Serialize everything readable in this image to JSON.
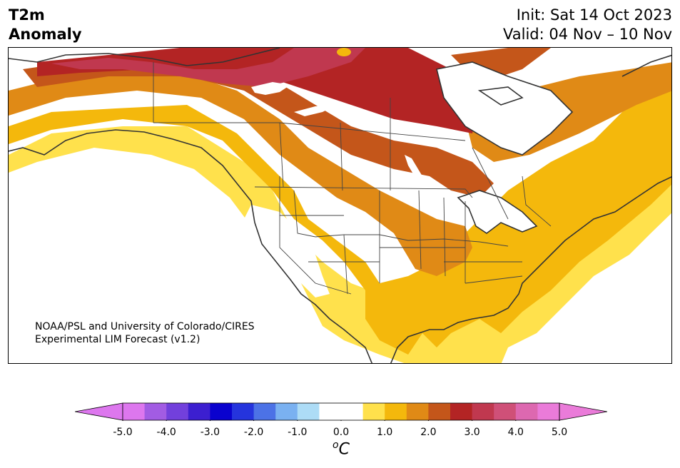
{
  "header": {
    "title_line1": "T2m",
    "title_line2": "Anomaly",
    "init": "Init: Sat 14 Oct 2023",
    "valid": "Valid: 04 Nov – 10 Nov"
  },
  "map": {
    "region": "North America",
    "projection": "conic",
    "credit_line1": "NOAA/PSL and University of Colorado/CIRES",
    "credit_line2": "Experimental LIM Forecast (v1.2)",
    "anomaly_levels": [
      {
        "range": "0.5 to 1.0",
        "color": "#ffe14c"
      },
      {
        "range": "1.0 to 1.5",
        "color": "#f4b80c"
      },
      {
        "range": "1.5 to 2.0",
        "color": "#e08a16"
      },
      {
        "range": "2.0 to 2.5",
        "color": "#c4561a"
      },
      {
        "range": "2.5 to 3.0",
        "color": "#b32424"
      },
      {
        "range": "3.0 to 3.5",
        "color": "#c0384f"
      }
    ]
  },
  "colorbar": {
    "unit_symbol": "C",
    "unit_superscript": "o",
    "extend": "both",
    "bins": [
      {
        "color": "#dd77ee"
      },
      {
        "color": "#a25ce3"
      },
      {
        "color": "#7240dc"
      },
      {
        "color": "#3c1fd0"
      },
      {
        "color": "#0a02ce"
      },
      {
        "color": "#2534dd"
      },
      {
        "color": "#4c72e6"
      },
      {
        "color": "#7ab1f1"
      },
      {
        "color": "#addcf6"
      },
      {
        "color": "#ffffff"
      },
      {
        "color": "#ffffff"
      },
      {
        "color": "#ffe14c"
      },
      {
        "color": "#f4b80c"
      },
      {
        "color": "#e08a16"
      },
      {
        "color": "#c4561a"
      },
      {
        "color": "#b32424"
      },
      {
        "color": "#c0384f"
      },
      {
        "color": "#cf5078"
      },
      {
        "color": "#dd68b0"
      },
      {
        "color": "#ea7bd9"
      }
    ],
    "low_extend_color": "#dd77ee",
    "high_extend_color": "#ea7bd9",
    "tick_labels": [
      "-5.0",
      "-4.0",
      "-3.0",
      "-2.0",
      "-1.0",
      "0.0",
      "1.0",
      "2.0",
      "3.0",
      "4.0",
      "5.0"
    ]
  }
}
